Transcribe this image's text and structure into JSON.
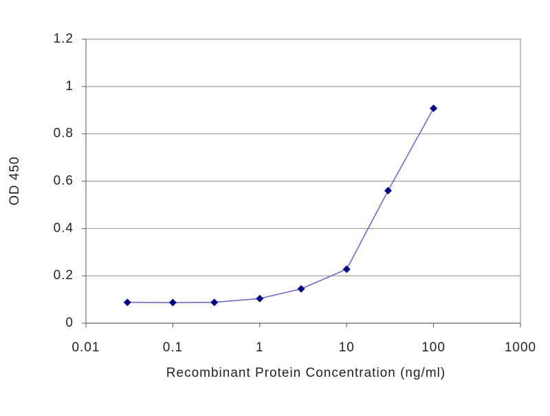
{
  "chart_data": {
    "type": "line",
    "x_label": "Recombinant Protein Concentration (ng/ml)",
    "y_label": "OD 450",
    "x": [
      0.03,
      0.1,
      0.3,
      1,
      3,
      10,
      30,
      100
    ],
    "series": [
      {
        "color": "#6a6ad0",
        "marker_color": "#000080",
        "values": [
          0.088,
          0.087,
          0.088,
          0.104,
          0.145,
          0.228,
          0.56,
          0.908
        ]
      }
    ],
    "xscale": "log",
    "xlim": [
      0.01,
      1000
    ],
    "xticks": [
      0.01,
      0.1,
      1,
      10,
      100,
      1000
    ],
    "ylim": [
      0,
      1.2
    ],
    "yticks": [
      0,
      0.2,
      0.4,
      0.6,
      0.8,
      1,
      1.2
    ],
    "grid": true
  }
}
